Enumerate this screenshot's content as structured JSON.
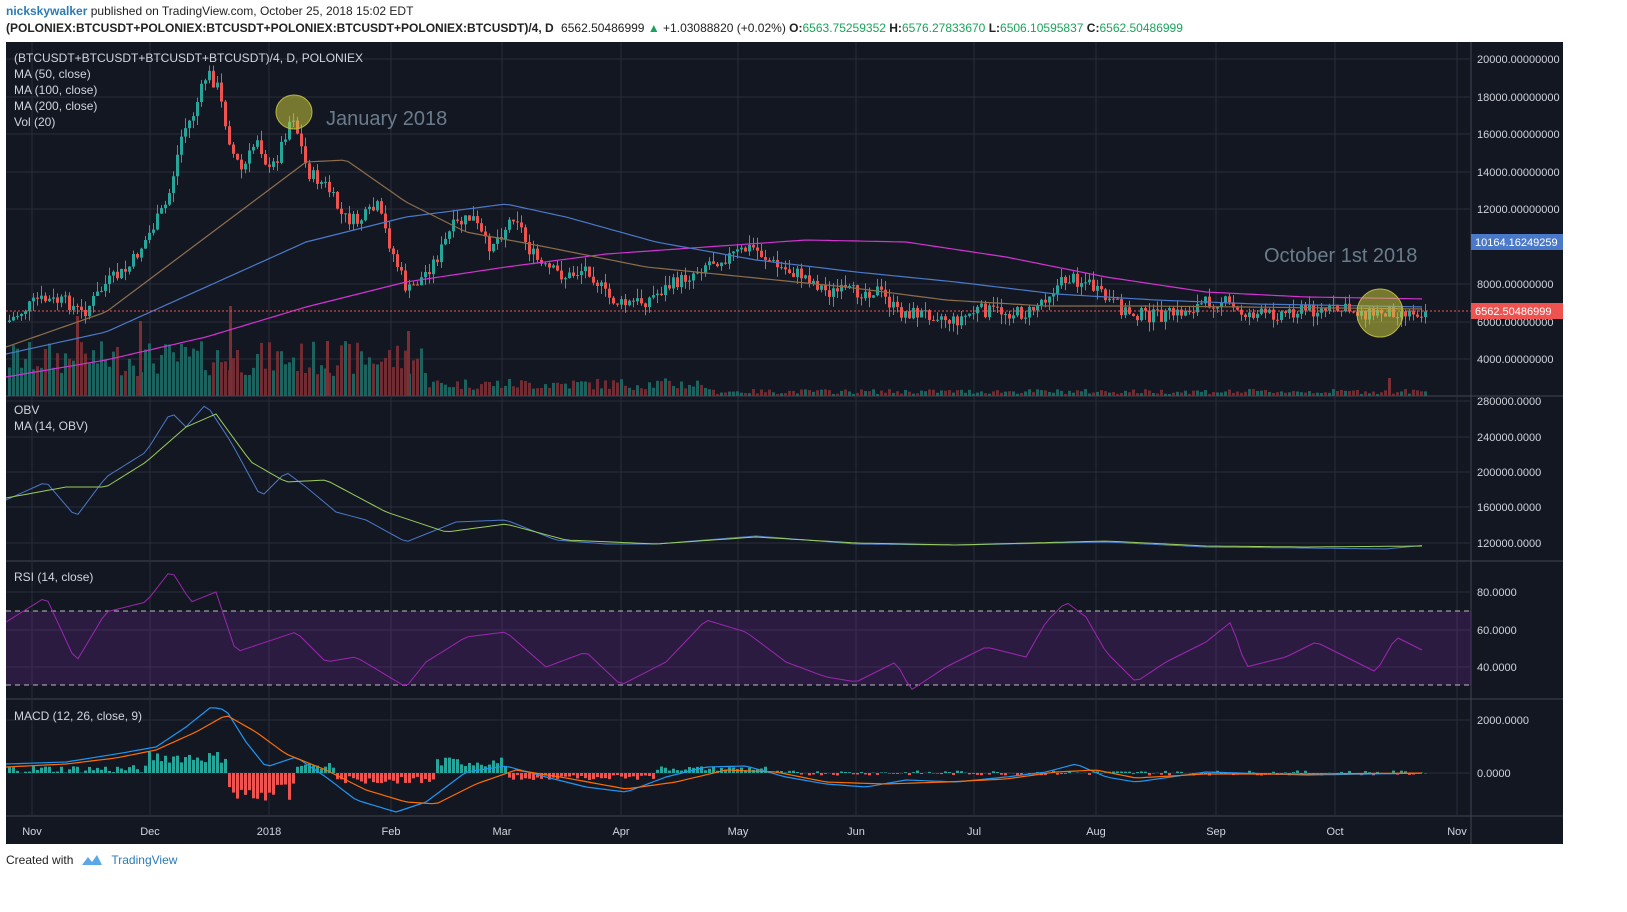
{
  "header": {
    "user": "nickskywalker",
    "published": "published on TradingView.com, October 25, 2018 15:02 EDT",
    "symbol": "(POLONIEX:BTCUSDT+POLONIEX:BTCUSDT+POLONIEX:BTCUSDT+POLONIEX:BTCUSDT)/4, D",
    "last": "6562.50486999",
    "change_arrow": "▲",
    "change": "+1.03088820 (+0.02%)",
    "o_label": "O:",
    "o": "6563.75259352",
    "h_label": "H:",
    "h": "6576.27833670",
    "l_label": "L:",
    "l": "6506.10595837",
    "c_label": "C:",
    "c": "6562.50486999"
  },
  "panes": {
    "main": {
      "legend": [
        "(BTCUSDT+BTCUSDT+BTCUSDT+BTCUSDT)/4, D, POLONIEX",
        "MA (50, close)",
        "MA (100, close)",
        "MA (200, close)",
        "Vol (20)"
      ],
      "annotations": [
        "January 2018",
        "October 1st 2018"
      ],
      "y_ticks": [
        "20000.00000000",
        "18000.00000000",
        "16000.00000000",
        "14000.00000000",
        "12000.00000000",
        "8000.00000000",
        "6000.00000000",
        "4000.00000000"
      ],
      "ma_label": "10164.16249259",
      "price_label": "6562.50486999"
    },
    "obv": {
      "legend": [
        "OBV",
        "MA (14, OBV)"
      ],
      "y_ticks": [
        "280000.0000",
        "240000.0000",
        "200000.0000",
        "160000.0000",
        "120000.0000"
      ]
    },
    "rsi": {
      "legend": [
        "RSI (14, close)"
      ],
      "y_ticks": [
        "80.0000",
        "60.0000",
        "40.0000"
      ]
    },
    "macd": {
      "legend": [
        "MACD (12, 26, close, 9)"
      ],
      "y_ticks": [
        "2000.0000",
        "0.0000"
      ]
    }
  },
  "x_axis": [
    "Nov",
    "Dec",
    "2018",
    "Feb",
    "Mar",
    "Apr",
    "May",
    "Jun",
    "Jul",
    "Aug",
    "Sep",
    "Oct",
    "Nov"
  ],
  "footer": {
    "created": "Created with",
    "brand": "TradingView"
  },
  "colors": {
    "background": "#131722",
    "up": "#26a69a",
    "down": "#ef5350",
    "ma50": "#8d6e4b",
    "ma100": "#4b79c9",
    "ma200": "#d233d2",
    "rsi": "#9c27b0",
    "macd": "#2196f3",
    "signal": "#ff6d00"
  }
}
